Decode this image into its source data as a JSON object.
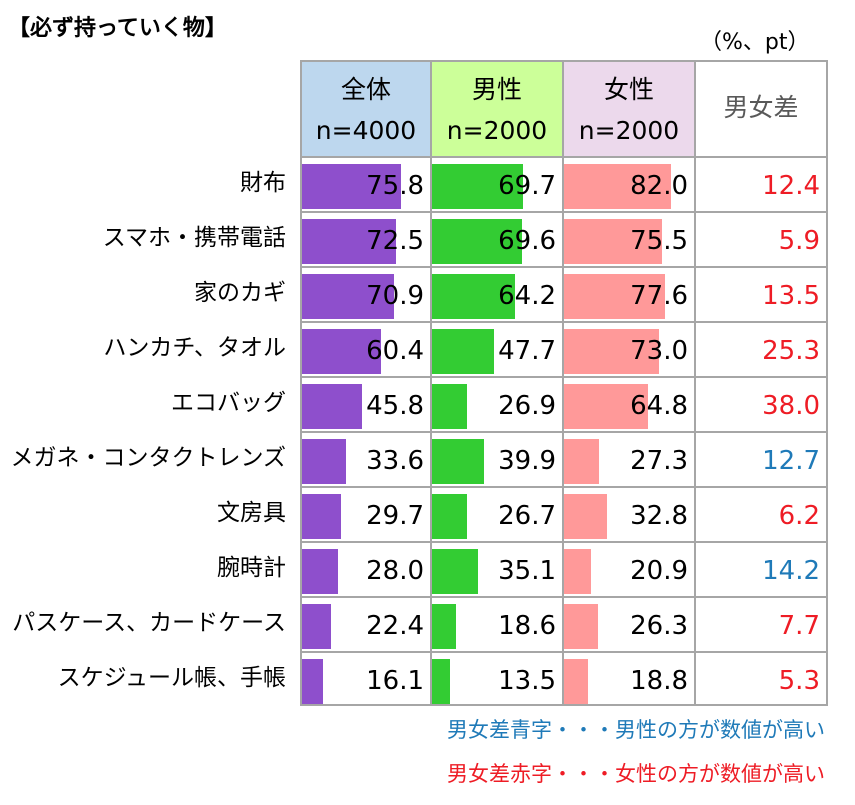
{
  "title": "【必ず持っていく物】",
  "unit_label": "（%、pt）",
  "columns": [
    {
      "name": "全体",
      "n": "n=4000",
      "bg": "#bdd7ee",
      "bar": "#8e4fcc"
    },
    {
      "name": "男性",
      "n": "n=2000",
      "bg": "#ccff99",
      "bar": "#33cc33"
    },
    {
      "name": "女性",
      "n": "n=2000",
      "bg": "#ecd9ec",
      "bar": "#ff9999"
    }
  ],
  "diff_header": "男女差",
  "colors": {
    "diff_red": "#ee1c25",
    "diff_blue": "#1f7ab8"
  },
  "notes": {
    "blue": "男女差青字・・・男性の方が数値が高い",
    "red": "男女差赤字・・・女性の方が数値が高い"
  },
  "chart_data": {
    "type": "bar",
    "title": "【必ず持っていく物】",
    "xlabel": "",
    "ylabel": "",
    "unit": "%、pt",
    "xlim": [
      0,
      100
    ],
    "categories": [
      "財布",
      "スマホ・携帯電話",
      "家のカギ",
      "ハンカチ、タオル",
      "エコバッグ",
      "メガネ・コンタクトレンズ",
      "文房具",
      "腕時計",
      "パスケース、カードケース",
      "スケジュール帳、手帳"
    ],
    "series": [
      {
        "name": "全体 n=4000",
        "values": [
          75.8,
          72.5,
          70.9,
          60.4,
          45.8,
          33.6,
          29.7,
          28.0,
          22.4,
          16.1
        ],
        "labels": [
          "75.8",
          "72.5",
          "70.9",
          "60.4",
          "45.8",
          "33.6",
          "29.7",
          "28.0",
          "22.4",
          "16.1"
        ]
      },
      {
        "name": "男性 n=2000",
        "values": [
          69.7,
          69.6,
          64.2,
          47.7,
          26.9,
          39.9,
          26.7,
          35.1,
          18.6,
          13.5
        ],
        "labels": [
          "69.7",
          "69.6",
          "64.2",
          "47.7",
          "26.9",
          "39.9",
          "26.7",
          "35.1",
          "18.6",
          "13.5"
        ]
      },
      {
        "name": "女性 n=2000",
        "values": [
          82.0,
          75.5,
          77.6,
          73.0,
          64.8,
          27.3,
          32.8,
          20.9,
          26.3,
          18.8
        ],
        "labels": [
          "82.0",
          "75.5",
          "77.6",
          "73.0",
          "64.8",
          "27.3",
          "32.8",
          "20.9",
          "26.3",
          "18.8"
        ]
      }
    ],
    "diff": {
      "name": "男女差",
      "values": [
        12.4,
        5.9,
        13.5,
        25.3,
        38.0,
        12.7,
        6.2,
        14.2,
        7.7,
        5.3
      ],
      "labels": [
        "12.4",
        "5.9",
        "13.5",
        "25.3",
        "38.0",
        "12.7",
        "6.2",
        "14.2",
        "7.7",
        "5.3"
      ],
      "higher": [
        "female",
        "female",
        "female",
        "female",
        "female",
        "male",
        "female",
        "male",
        "female",
        "female"
      ]
    }
  }
}
